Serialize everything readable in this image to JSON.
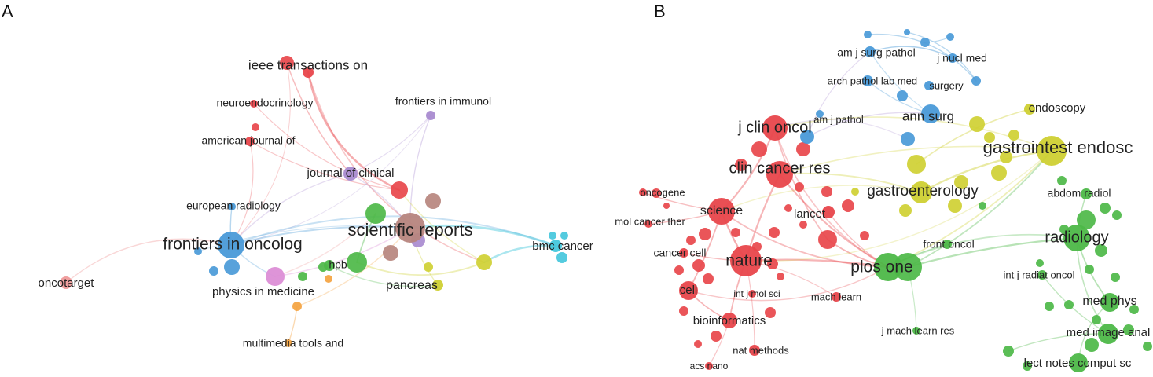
{
  "panels": [
    {
      "letter": "A",
      "nodes": [
        {
          "id": "ieee",
          "label": "ieee transactions on",
          "cluster": "red"
        },
        {
          "id": "neuro",
          "label": "neuroendocrinology",
          "cluster": "red"
        },
        {
          "id": "amj",
          "label": "american journal of",
          "cluster": "red"
        },
        {
          "id": "fimm",
          "label": "frontiers in immunol",
          "cluster": "purple"
        },
        {
          "id": "jclin",
          "label": "journal of clinical",
          "cluster": "purple"
        },
        {
          "id": "eurrad",
          "label": "european radiology",
          "cluster": "blue"
        },
        {
          "id": "fonc",
          "label": "frontiers in oncolog",
          "cluster": "blue"
        },
        {
          "id": "scirep",
          "label": "scientific reports",
          "cluster": "brown"
        },
        {
          "id": "bmc",
          "label": "bmc cancer",
          "cluster": "cyan"
        },
        {
          "id": "onco",
          "label": "oncotarget",
          "cluster": "pink"
        },
        {
          "id": "hpb",
          "label": "hpb",
          "cluster": "green"
        },
        {
          "id": "physmed",
          "label": "physics in medicine",
          "cluster": "magenta"
        },
        {
          "id": "pancreas",
          "label": "pancreas",
          "cluster": "yellow"
        },
        {
          "id": "mmtools",
          "label": "multimedia tools and",
          "cluster": "orange"
        }
      ]
    },
    {
      "letter": "B",
      "nodes": [
        {
          "id": "amjsurg",
          "label": "am j surg pathol",
          "cluster": "blue"
        },
        {
          "id": "jnucl",
          "label": "j nucl med",
          "cluster": "blue"
        },
        {
          "id": "archpath",
          "label": "arch pathol lab med",
          "cluster": "blue"
        },
        {
          "id": "surgery",
          "label": "surgery",
          "cluster": "blue"
        },
        {
          "id": "endoscopy",
          "label": "endoscopy",
          "cluster": "yellow"
        },
        {
          "id": "annsurg",
          "label": "ann surg",
          "cluster": "blue"
        },
        {
          "id": "jclinoncol",
          "label": "j clin oncol",
          "cluster": "red"
        },
        {
          "id": "amjpath",
          "label": "am j pathol",
          "cluster": "blue"
        },
        {
          "id": "gie",
          "label": "gastrointest endosc",
          "cluster": "yellow"
        },
        {
          "id": "ccr",
          "label": "clin cancer res",
          "cluster": "red"
        },
        {
          "id": "gastro",
          "label": "gastroenterology",
          "cluster": "yellow"
        },
        {
          "id": "oncogene",
          "label": "oncogene",
          "cluster": "red"
        },
        {
          "id": "abdom",
          "label": "abdom radiol",
          "cluster": "green"
        },
        {
          "id": "science",
          "label": "science",
          "cluster": "red"
        },
        {
          "id": "lancet",
          "label": "lancet",
          "cluster": "red"
        },
        {
          "id": "molcancer",
          "label": "mol cancer ther",
          "cluster": "red"
        },
        {
          "id": "radiology",
          "label": "radiology",
          "cluster": "green"
        },
        {
          "id": "frontoncol",
          "label": "front oncol",
          "cluster": "green"
        },
        {
          "id": "cancercell",
          "label": "cancer cell",
          "cluster": "red"
        },
        {
          "id": "nature",
          "label": "nature",
          "cluster": "red"
        },
        {
          "id": "plosone",
          "label": "plos one",
          "cluster": "green"
        },
        {
          "id": "intjrad",
          "label": "int j radiat oncol",
          "cluster": "green"
        },
        {
          "id": "cell",
          "label": "cell",
          "cluster": "red"
        },
        {
          "id": "intjmol",
          "label": "int j mol sci",
          "cluster": "red"
        },
        {
          "id": "machlearn",
          "label": "mach learn",
          "cluster": "red"
        },
        {
          "id": "medphys",
          "label": "med phys",
          "cluster": "green"
        },
        {
          "id": "bioinf",
          "label": "bioinformatics",
          "cluster": "red"
        },
        {
          "id": "jmlr",
          "label": "j mach learn res",
          "cluster": "green"
        },
        {
          "id": "medimage",
          "label": "med image anal",
          "cluster": "green"
        },
        {
          "id": "natmeth",
          "label": "nat methods",
          "cluster": "red"
        },
        {
          "id": "lnc",
          "label": "lect notes comput sc",
          "cluster": "green"
        },
        {
          "id": "acsnano",
          "label": "acs nano",
          "cluster": "red"
        }
      ]
    }
  ],
  "colors": {
    "red": "#e8464b",
    "blue": "#4a9ad8",
    "green": "#4db848",
    "yellow": "#cfd033",
    "purple": "#a98bd0",
    "brown": "#b7857e",
    "cyan": "#45c7dc",
    "pink": "#ef9a9a",
    "magenta": "#dc8ed6",
    "orange": "#f4a340"
  }
}
